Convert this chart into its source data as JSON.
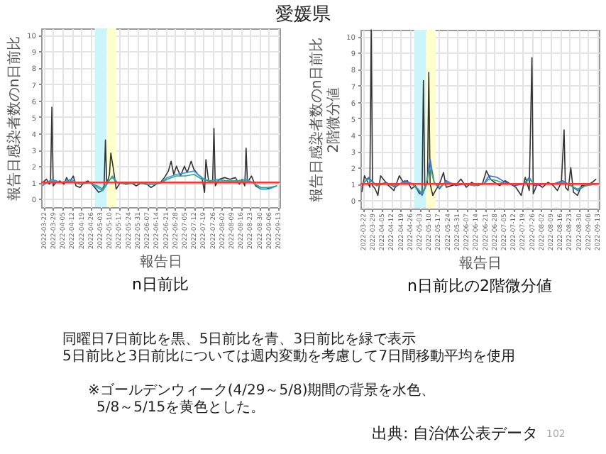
{
  "chart_data": [
    {
      "type": "line",
      "title": "n日前比",
      "xlabel": "報告日",
      "ylabel": "報告日感染者数のn日前比",
      "xlim": [
        "2022-03-20",
        "2022-09-14"
      ],
      "xticks": [
        "2022-03-22",
        "2022-03-29",
        "2022-04-05",
        "2022-04-12",
        "2022-04-19",
        "2022-04-26",
        "2022-05-03",
        "2022-05-10",
        "2022-05-17",
        "2022-05-24",
        "2022-05-31",
        "2022-06-07",
        "2022-06-14",
        "2022-06-21",
        "2022-06-28",
        "2022-07-05",
        "2022-07-12",
        "2022-07-19",
        "2022-07-26",
        "2022-08-02",
        "2022-08-09",
        "2022-08-16",
        "2022-08-23",
        "2022-08-30",
        "2022-09-06",
        "2022-09-13"
      ],
      "ylim": [
        -0.5,
        10.4
      ],
      "yticks": [
        0,
        1,
        2,
        3,
        4,
        5,
        6,
        7,
        8,
        9,
        10
      ],
      "grid": true,
      "annotations": [
        "愛媛県",
        "同曜日7日前比を黒、5日前比を青、3日前比を緑で表示",
        "5日前比と3日前比については週内変動を考慮して7日間移動平均を使用",
        "※ゴールデンウィーク(4/29～5/8)期間の背景を水色、",
        "5/8～5/15を黄色とした。",
        "出典: 自治体公表データ",
        "102"
      ],
      "bands": [
        {
          "axis": "x",
          "from": "2022-04-29",
          "to": "2022-05-08",
          "color": "#ccf4fb"
        },
        {
          "axis": "x",
          "from": "2022-05-08",
          "to": "2022-05-15",
          "color": "#ffffcc"
        }
      ],
      "ref_lines": [
        {
          "axis": "y",
          "value": 1,
          "color": "#ff3333"
        }
      ],
      "series": [
        {
          "color": "#333333",
          "x": [
            "2022-03-21",
            "2022-03-24",
            "2022-03-26",
            "2022-03-27",
            "2022-03-28",
            "2022-03-29",
            "2022-03-31",
            "2022-04-03",
            "2022-04-06",
            "2022-04-08",
            "2022-04-10",
            "2022-04-13",
            "2022-04-15",
            "2022-04-18",
            "2022-04-21",
            "2022-04-24",
            "2022-04-27",
            "2022-04-30",
            "2022-05-02",
            "2022-05-04",
            "2022-05-06",
            "2022-05-07",
            "2022-05-08",
            "2022-05-10",
            "2022-05-11",
            "2022-05-13",
            "2022-05-15",
            "2022-05-18",
            "2022-05-22",
            "2022-05-26",
            "2022-05-30",
            "2022-06-03",
            "2022-06-07",
            "2022-06-10",
            "2022-06-14",
            "2022-06-17",
            "2022-06-20",
            "2022-06-23",
            "2022-06-25",
            "2022-06-27",
            "2022-06-29",
            "2022-07-02",
            "2022-07-05",
            "2022-07-07",
            "2022-07-10",
            "2022-07-12",
            "2022-07-15",
            "2022-07-18",
            "2022-07-20",
            "2022-07-21",
            "2022-07-23",
            "2022-07-26",
            "2022-07-27",
            "2022-07-28",
            "2022-07-31",
            "2022-08-04",
            "2022-08-08",
            "2022-08-12",
            "2022-08-15",
            "2022-08-17",
            "2022-08-19",
            "2022-08-20",
            "2022-08-21",
            "2022-08-24",
            "2022-08-27",
            "2022-08-31",
            "2022-09-04",
            "2022-09-08",
            "2022-09-12"
          ],
          "values": [
            1.0,
            1.2,
            0.9,
            1.0,
            5.6,
            0.8,
            1.0,
            1.1,
            0.9,
            1.3,
            1.0,
            1.4,
            0.8,
            0.7,
            1.0,
            1.1,
            0.9,
            0.6,
            0.4,
            0.5,
            0.8,
            3.6,
            0.9,
            1.5,
            2.8,
            1.8,
            0.6,
            1.0,
            0.9,
            1.0,
            0.8,
            1.0,
            0.9,
            0.7,
            0.9,
            1.0,
            1.3,
            1.7,
            2.3,
            1.5,
            2.0,
            1.4,
            2.0,
            1.6,
            2.3,
            1.8,
            1.5,
            1.3,
            0.4,
            2.4,
            1.1,
            1.0,
            4.3,
            0.8,
            1.2,
            1.3,
            1.2,
            1.3,
            0.9,
            1.2,
            0.8,
            3.1,
            1.0,
            1.4,
            0.8,
            0.6,
            0.6,
            0.7,
            0.8
          ]
        },
        {
          "color": "#3399ee",
          "x": [
            "2022-03-21",
            "2022-03-28",
            "2022-04-04",
            "2022-04-11",
            "2022-04-18",
            "2022-04-25",
            "2022-05-01",
            "2022-05-05",
            "2022-05-09",
            "2022-05-12",
            "2022-05-16",
            "2022-05-23",
            "2022-05-30",
            "2022-06-06",
            "2022-06-13",
            "2022-06-18",
            "2022-06-22",
            "2022-06-29",
            "2022-07-06",
            "2022-07-12",
            "2022-07-18",
            "2022-07-23",
            "2022-07-30",
            "2022-08-06",
            "2022-08-13",
            "2022-08-20",
            "2022-08-25",
            "2022-08-31",
            "2022-09-06",
            "2022-09-12"
          ],
          "values": [
            0.8,
            1.2,
            1.0,
            1.2,
            0.9,
            1.0,
            0.7,
            0.5,
            1.0,
            1.4,
            1.0,
            0.9,
            1.0,
            0.9,
            0.9,
            1.0,
            1.3,
            1.5,
            1.6,
            1.7,
            1.3,
            1.1,
            1.2,
            1.1,
            1.1,
            1.2,
            1.0,
            0.6,
            0.6,
            0.8
          ]
        },
        {
          "color": "#33aa77",
          "x": [
            "2022-03-21",
            "2022-03-28",
            "2022-04-04",
            "2022-04-11",
            "2022-04-18",
            "2022-04-25",
            "2022-05-01",
            "2022-05-05",
            "2022-05-09",
            "2022-05-12",
            "2022-05-16",
            "2022-05-23",
            "2022-05-30",
            "2022-06-06",
            "2022-06-13",
            "2022-06-18",
            "2022-06-22",
            "2022-06-29",
            "2022-07-06",
            "2022-07-12",
            "2022-07-18",
            "2022-07-23",
            "2022-07-30",
            "2022-08-06",
            "2022-08-13",
            "2022-08-20",
            "2022-08-25",
            "2022-08-31",
            "2022-09-06",
            "2022-09-12"
          ],
          "values": [
            0.9,
            1.1,
            1.0,
            1.1,
            0.9,
            1.0,
            0.8,
            0.6,
            1.1,
            1.3,
            1.0,
            0.9,
            1.0,
            0.9,
            0.9,
            1.0,
            1.2,
            1.4,
            1.4,
            1.5,
            1.2,
            1.1,
            1.1,
            1.1,
            1.1,
            1.1,
            1.0,
            0.7,
            0.7,
            0.8
          ]
        }
      ]
    },
    {
      "type": "line",
      "title": "n日前比の2階微分値",
      "xlabel": "報告日",
      "ylabel": "報告日感染者数のn日前比\n2階微分値",
      "xlim": [
        "2022-03-20",
        "2022-09-14"
      ],
      "xticks": [
        "2022-03-22",
        "2022-03-29",
        "2022-04-05",
        "2022-04-12",
        "2022-04-19",
        "2022-04-26",
        "2022-05-03",
        "2022-05-10",
        "2022-05-17",
        "2022-05-24",
        "2022-05-31",
        "2022-06-07",
        "2022-06-14",
        "2022-06-21",
        "2022-06-28",
        "2022-07-05",
        "2022-07-12",
        "2022-07-19",
        "2022-07-26",
        "2022-08-02",
        "2022-08-09",
        "2022-08-16",
        "2022-08-23",
        "2022-08-30",
        "2022-09-06",
        "2022-09-13"
      ],
      "ylim": [
        -0.5,
        10.4
      ],
      "yticks": [
        0,
        1,
        2,
        3,
        4,
        5,
        6,
        7,
        8,
        9,
        10
      ],
      "grid": true,
      "bands": [
        {
          "axis": "x",
          "from": "2022-04-29",
          "to": "2022-05-08",
          "color": "#ccf4fb"
        },
        {
          "axis": "x",
          "from": "2022-05-08",
          "to": "2022-05-15",
          "color": "#ffffcc"
        }
      ],
      "ref_lines": [
        {
          "axis": "y",
          "value": 1,
          "color": "#ff3333"
        }
      ],
      "series": [
        {
          "color": "#333333",
          "x": [
            "2022-03-21",
            "2022-03-23",
            "2022-03-25",
            "2022-03-27",
            "2022-03-28",
            "2022-03-29",
            "2022-03-31",
            "2022-04-02",
            "2022-04-04",
            "2022-04-07",
            "2022-04-10",
            "2022-04-14",
            "2022-04-18",
            "2022-04-21",
            "2022-04-24",
            "2022-04-27",
            "2022-04-30",
            "2022-05-03",
            "2022-05-05",
            "2022-05-06",
            "2022-05-07",
            "2022-05-09",
            "2022-05-10",
            "2022-05-11",
            "2022-05-13",
            "2022-05-15",
            "2022-05-18",
            "2022-05-21",
            "2022-05-23",
            "2022-05-27",
            "2022-05-31",
            "2022-06-03",
            "2022-06-07",
            "2022-06-11",
            "2022-06-15",
            "2022-06-19",
            "2022-06-22",
            "2022-06-25",
            "2022-06-28",
            "2022-07-02",
            "2022-07-06",
            "2022-07-10",
            "2022-07-14",
            "2022-07-18",
            "2022-07-21",
            "2022-07-24",
            "2022-07-26",
            "2022-07-27",
            "2022-07-30",
            "2022-08-03",
            "2022-08-07",
            "2022-08-11",
            "2022-08-14",
            "2022-08-17",
            "2022-08-19",
            "2022-08-20",
            "2022-08-22",
            "2022-08-24",
            "2022-08-26",
            "2022-08-29",
            "2022-09-01",
            "2022-09-05",
            "2022-09-09",
            "2022-09-12"
          ],
          "values": [
            0.5,
            1.5,
            1.2,
            0.8,
            10.4,
            0.9,
            0.7,
            0.3,
            1.5,
            1.2,
            0.9,
            0.6,
            1.5,
            1.1,
            1.2,
            0.7,
            0.9,
            0.4,
            0.5,
            7.3,
            0.9,
            1.0,
            7.8,
            1.0,
            0.3,
            0.6,
            1.0,
            1.7,
            0.8,
            0.9,
            1.0,
            1.3,
            0.8,
            1.1,
            0.9,
            1.0,
            1.8,
            1.3,
            1.1,
            0.9,
            1.2,
            1.0,
            0.8,
            0.3,
            1.4,
            0.6,
            8.7,
            0.4,
            1.0,
            0.8,
            1.1,
            0.9,
            0.6,
            1.1,
            4.3,
            0.8,
            0.6,
            2.0,
            0.5,
            0.3,
            0.9,
            0.9,
            1.1,
            1.3
          ]
        },
        {
          "color": "#3366dd",
          "x": [
            "2022-03-21",
            "2022-03-26",
            "2022-04-01",
            "2022-04-08",
            "2022-04-15",
            "2022-04-22",
            "2022-04-28",
            "2022-05-02",
            "2022-05-05",
            "2022-05-08",
            "2022-05-11",
            "2022-05-14",
            "2022-05-18",
            "2022-05-23",
            "2022-05-30",
            "2022-06-06",
            "2022-06-13",
            "2022-06-20",
            "2022-06-24",
            "2022-06-30",
            "2022-07-06",
            "2022-07-13",
            "2022-07-20",
            "2022-07-24",
            "2022-07-28",
            "2022-08-04",
            "2022-08-11",
            "2022-08-18",
            "2022-08-24",
            "2022-08-29",
            "2022-09-04",
            "2022-09-12"
          ],
          "values": [
            0.9,
            1.4,
            0.9,
            1.1,
            0.8,
            1.2,
            1.0,
            0.6,
            0.3,
            0.9,
            2.5,
            1.1,
            0.7,
            1.2,
            0.9,
            1.0,
            0.9,
            1.0,
            1.5,
            1.4,
            1.1,
            0.9,
            1.0,
            1.4,
            0.9,
            1.0,
            1.0,
            1.2,
            0.9,
            0.6,
            0.9,
            1.0
          ]
        },
        {
          "color": "#33aa77",
          "x": [
            "2022-03-21",
            "2022-03-26",
            "2022-04-01",
            "2022-04-08",
            "2022-04-15",
            "2022-04-22",
            "2022-04-28",
            "2022-05-02",
            "2022-05-05",
            "2022-05-08",
            "2022-05-11",
            "2022-05-14",
            "2022-05-18",
            "2022-05-23",
            "2022-05-30",
            "2022-06-06",
            "2022-06-13",
            "2022-06-20",
            "2022-06-24",
            "2022-06-30",
            "2022-07-06",
            "2022-07-13",
            "2022-07-20",
            "2022-07-24",
            "2022-07-28",
            "2022-08-04",
            "2022-08-11",
            "2022-08-18",
            "2022-08-24",
            "2022-08-29",
            "2022-09-04",
            "2022-09-12"
          ],
          "values": [
            1.0,
            1.3,
            0.9,
            1.0,
            0.9,
            1.1,
            1.0,
            0.7,
            0.4,
            1.0,
            2.0,
            1.1,
            0.8,
            1.1,
            1.0,
            1.0,
            0.9,
            1.0,
            1.3,
            1.2,
            1.0,
            1.0,
            1.0,
            1.3,
            1.0,
            1.0,
            1.0,
            1.1,
            0.9,
            0.7,
            0.9,
            1.0
          ]
        }
      ]
    }
  ]
}
